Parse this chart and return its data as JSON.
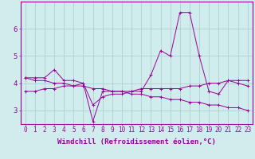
{
  "xlabel": "Windchill (Refroidissement éolien,°C)",
  "background_color": "#d0ecec",
  "line_color": "#990099",
  "x_ticks": [
    0,
    1,
    2,
    3,
    4,
    5,
    6,
    7,
    8,
    9,
    10,
    11,
    12,
    13,
    14,
    15,
    16,
    17,
    18,
    19,
    20,
    21,
    22,
    23
  ],
  "y_ticks": [
    3,
    4,
    5,
    6
  ],
  "ylim": [
    2.5,
    7.0
  ],
  "xlim": [
    -0.5,
    23.5
  ],
  "series1_x": [
    0,
    1,
    2,
    3,
    4,
    5,
    6,
    7,
    8,
    9,
    10,
    11,
    12,
    13,
    14,
    15,
    16,
    17,
    18,
    19,
    20,
    21,
    22,
    23
  ],
  "series1_y": [
    4.2,
    4.2,
    4.2,
    4.5,
    4.1,
    4.1,
    4.0,
    2.6,
    3.7,
    3.7,
    3.7,
    3.7,
    3.7,
    4.3,
    5.2,
    5.0,
    6.6,
    6.6,
    5.0,
    3.7,
    3.6,
    4.1,
    4.0,
    3.9
  ],
  "series2_x": [
    0,
    1,
    2,
    3,
    4,
    5,
    6,
    7,
    8,
    9,
    10,
    11,
    12,
    13,
    14,
    15,
    16,
    17,
    18,
    19,
    20,
    21,
    22,
    23
  ],
  "series2_y": [
    3.7,
    3.7,
    3.8,
    3.8,
    3.9,
    3.9,
    4.0,
    3.2,
    3.5,
    3.6,
    3.6,
    3.7,
    3.8,
    3.8,
    3.8,
    3.8,
    3.8,
    3.9,
    3.9,
    4.0,
    4.0,
    4.1,
    4.1,
    4.1
  ],
  "series3_x": [
    0,
    1,
    2,
    3,
    4,
    5,
    6,
    7,
    8,
    9,
    10,
    11,
    12,
    13,
    14,
    15,
    16,
    17,
    18,
    19,
    20,
    21,
    22,
    23
  ],
  "series3_y": [
    4.2,
    4.1,
    4.1,
    4.0,
    4.0,
    3.9,
    3.9,
    3.8,
    3.8,
    3.7,
    3.7,
    3.6,
    3.6,
    3.5,
    3.5,
    3.4,
    3.4,
    3.3,
    3.3,
    3.2,
    3.2,
    3.1,
    3.1,
    3.0
  ],
  "grid_color": "#aacccc",
  "tick_fontsize": 5.5,
  "xlabel_fontsize": 6.5
}
